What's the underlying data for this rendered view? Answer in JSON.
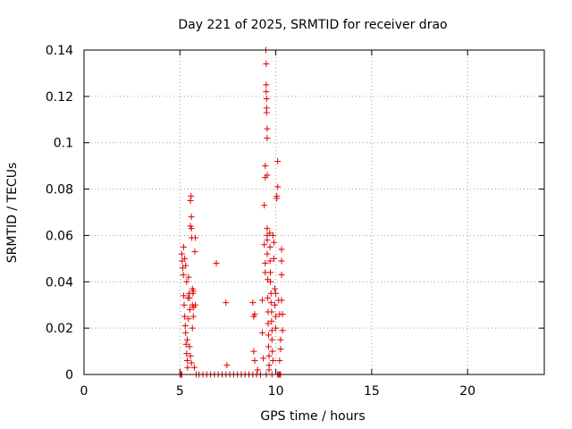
{
  "chart_data": {
    "type": "scatter",
    "title": "Day 221 of 2025, SRMTID for receiver drao",
    "xlabel": "GPS time / hours",
    "ylabel": "SRMTID / TECUs",
    "xlim": [
      0,
      24
    ],
    "ylim": [
      0,
      0.14
    ],
    "xticks": [
      0,
      5,
      10,
      15,
      20
    ],
    "yticks": [
      0,
      0.02,
      0.04,
      0.06,
      0.08,
      0.1,
      0.12,
      0.14
    ],
    "xtick_labels": [
      "0",
      "5",
      "10",
      "15",
      "20"
    ],
    "ytick_labels": [
      "0",
      "0.02",
      "0.04",
      "0.06",
      "0.08",
      "0.1",
      "0.12",
      "0.14"
    ],
    "grid": true,
    "marker": "+",
    "color": "#e00000",
    "series": [
      {
        "name": "SRMTID",
        "points": [
          [
            5.0,
            0.0
          ],
          [
            5.05,
            0.0
          ],
          [
            5.1,
            0.0
          ],
          [
            5.1,
            0.052
          ],
          [
            5.12,
            0.049
          ],
          [
            5.15,
            0.046
          ],
          [
            5.18,
            0.043
          ],
          [
            5.2,
            0.034
          ],
          [
            5.22,
            0.03
          ],
          [
            5.25,
            0.025
          ],
          [
            5.28,
            0.021
          ],
          [
            5.3,
            0.018
          ],
          [
            5.32,
            0.013
          ],
          [
            5.35,
            0.009
          ],
          [
            5.38,
            0.006
          ],
          [
            5.4,
            0.003
          ],
          [
            5.42,
            0.033
          ],
          [
            5.45,
            0.024
          ],
          [
            5.2,
            0.055
          ],
          [
            5.25,
            0.05
          ],
          [
            5.3,
            0.047
          ],
          [
            5.35,
            0.04
          ],
          [
            5.38,
            0.015
          ],
          [
            5.45,
            0.042
          ],
          [
            5.48,
            0.035
          ],
          [
            5.5,
            0.033
          ],
          [
            5.52,
            0.028
          ],
          [
            5.55,
            0.064
          ],
          [
            5.55,
            0.075
          ],
          [
            5.58,
            0.077
          ],
          [
            5.6,
            0.068
          ],
          [
            5.6,
            0.063
          ],
          [
            5.62,
            0.059
          ],
          [
            5.65,
            0.037
          ],
          [
            5.65,
            0.03
          ],
          [
            5.68,
            0.035
          ],
          [
            5.7,
            0.036
          ],
          [
            5.72,
            0.029
          ],
          [
            5.5,
            0.012
          ],
          [
            5.55,
            0.008
          ],
          [
            5.6,
            0.005
          ],
          [
            5.65,
            0.02
          ],
          [
            5.7,
            0.025
          ],
          [
            5.75,
            0.003
          ],
          [
            5.78,
            0.053
          ],
          [
            5.8,
            0.059
          ],
          [
            5.8,
            0.03
          ],
          [
            5.85,
            0.0
          ],
          [
            6.0,
            0.0
          ],
          [
            6.2,
            0.0
          ],
          [
            6.4,
            0.0
          ],
          [
            6.6,
            0.0
          ],
          [
            6.8,
            0.0
          ],
          [
            7.0,
            0.0
          ],
          [
            7.2,
            0.0
          ],
          [
            7.4,
            0.0
          ],
          [
            7.6,
            0.0
          ],
          [
            7.8,
            0.0
          ],
          [
            8.0,
            0.0
          ],
          [
            8.2,
            0.0
          ],
          [
            8.4,
            0.0
          ],
          [
            8.6,
            0.0
          ],
          [
            8.8,
            0.0
          ],
          [
            9.0,
            0.0
          ],
          [
            9.2,
            0.0
          ],
          [
            6.9,
            0.048
          ],
          [
            7.4,
            0.031
          ],
          [
            7.45,
            0.004
          ],
          [
            8.8,
            0.031
          ],
          [
            8.85,
            0.025
          ],
          [
            8.9,
            0.026
          ],
          [
            8.85,
            0.01
          ],
          [
            8.9,
            0.006
          ],
          [
            9.05,
            0.002
          ],
          [
            9.3,
            0.032
          ],
          [
            9.3,
            0.018
          ],
          [
            9.35,
            0.007
          ],
          [
            9.4,
            0.073
          ],
          [
            9.4,
            0.056
          ],
          [
            9.45,
            0.09
          ],
          [
            9.45,
            0.085
          ],
          [
            9.45,
            0.048
          ],
          [
            9.45,
            0.044
          ],
          [
            9.48,
            0.14
          ],
          [
            9.5,
            0.134
          ],
          [
            9.5,
            0.125
          ],
          [
            9.5,
            0.122
          ],
          [
            9.52,
            0.119
          ],
          [
            9.52,
            0.115
          ],
          [
            9.52,
            0.113
          ],
          [
            9.55,
            0.106
          ],
          [
            9.55,
            0.102
          ],
          [
            9.55,
            0.086
          ],
          [
            9.55,
            0.063
          ],
          [
            9.55,
            0.06
          ],
          [
            9.55,
            0.058
          ],
          [
            9.55,
            0.052
          ],
          [
            9.58,
            0.041
          ],
          [
            9.58,
            0.033
          ],
          [
            9.6,
            0.027
          ],
          [
            9.6,
            0.022
          ],
          [
            9.62,
            0.017
          ],
          [
            9.62,
            0.012
          ],
          [
            9.65,
            0.008
          ],
          [
            9.65,
            0.004
          ],
          [
            9.65,
            0.002
          ],
          [
            9.68,
            0.061
          ],
          [
            9.7,
            0.055
          ],
          [
            9.7,
            0.049
          ],
          [
            9.72,
            0.044
          ],
          [
            9.72,
            0.04
          ],
          [
            9.75,
            0.035
          ],
          [
            9.75,
            0.031
          ],
          [
            9.78,
            0.027
          ],
          [
            9.78,
            0.023
          ],
          [
            9.8,
            0.019
          ],
          [
            9.8,
            0.015
          ],
          [
            9.82,
            0.01
          ],
          [
            9.85,
            0.006
          ],
          [
            9.85,
            0.06
          ],
          [
            9.9,
            0.057
          ],
          [
            9.9,
            0.05
          ],
          [
            9.95,
            0.037
          ],
          [
            9.95,
            0.03
          ],
          [
            10.0,
            0.035
          ],
          [
            10.0,
            0.025
          ],
          [
            10.0,
            0.02
          ],
          [
            10.05,
            0.077
          ],
          [
            10.05,
            0.076
          ],
          [
            10.1,
            0.092
          ],
          [
            10.1,
            0.081
          ],
          [
            10.15,
            0.032
          ],
          [
            10.2,
            0.026
          ],
          [
            10.25,
            0.015
          ],
          [
            10.3,
            0.054
          ],
          [
            10.3,
            0.049
          ],
          [
            10.3,
            0.043
          ],
          [
            10.3,
            0.032
          ],
          [
            10.35,
            0.026
          ],
          [
            10.35,
            0.019
          ],
          [
            10.25,
            0.011
          ],
          [
            10.2,
            0.006
          ],
          [
            9.5,
            0.0
          ],
          [
            9.8,
            0.0
          ],
          [
            10.1,
            0.0
          ],
          [
            10.15,
            0.0
          ],
          [
            10.2,
            0.0
          ],
          [
            10.25,
            0.0
          ]
        ]
      }
    ]
  }
}
